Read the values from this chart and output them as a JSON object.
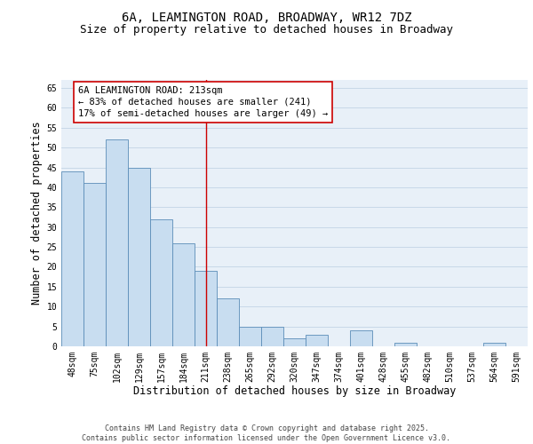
{
  "title_line1": "6A, LEAMINGTON ROAD, BROADWAY, WR12 7DZ",
  "title_line2": "Size of property relative to detached houses in Broadway",
  "xlabel": "Distribution of detached houses by size in Broadway",
  "ylabel": "Number of detached properties",
  "bar_values": [
    44,
    41,
    52,
    45,
    32,
    26,
    19,
    12,
    5,
    5,
    2,
    3,
    0,
    4,
    0,
    1,
    0,
    0,
    0,
    1,
    0
  ],
  "bar_labels": [
    "48sqm",
    "75sqm",
    "102sqm",
    "129sqm",
    "157sqm",
    "184sqm",
    "211sqm",
    "238sqm",
    "265sqm",
    "292sqm",
    "320sqm",
    "347sqm",
    "374sqm",
    "401sqm",
    "428sqm",
    "455sqm",
    "482sqm",
    "510sqm",
    "537sqm",
    "564sqm",
    "591sqm"
  ],
  "bar_color": "#c8ddf0",
  "bar_edge_color": "#5b8db8",
  "reference_index": 6,
  "reference_line_color": "#cc0000",
  "annotation_line1": "6A LEAMINGTON ROAD: 213sqm",
  "annotation_line2": "← 83% of detached houses are smaller (241)",
  "annotation_line3": "17% of semi-detached houses are larger (49) →",
  "annotation_box_edgecolor": "#cc0000",
  "ylim": [
    0,
    67
  ],
  "yticks": [
    0,
    5,
    10,
    15,
    20,
    25,
    30,
    35,
    40,
    45,
    50,
    55,
    60,
    65
  ],
  "grid_color": "#c8d8e8",
  "background_color": "#e8f0f8",
  "footer_line1": "Contains HM Land Registry data © Crown copyright and database right 2025.",
  "footer_line2": "Contains public sector information licensed under the Open Government Licence v3.0.",
  "title_fontsize": 10,
  "subtitle_fontsize": 9,
  "axis_label_fontsize": 8.5,
  "tick_fontsize": 7,
  "annotation_fontsize": 7.5,
  "footer_fontsize": 6
}
